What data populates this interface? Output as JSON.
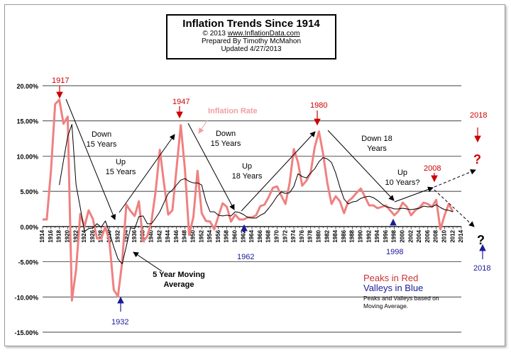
{
  "header": {
    "title": "Inflation  Trends Since 1914",
    "copyright": "© 2013",
    "site": "www.InflationData.com",
    "prepared": "Prepared  By Timothy  McMahon",
    "updated": "Updated   4/27/2013"
  },
  "colors": {
    "inflation": "#f08080",
    "average": "#000000",
    "peak_text": "#cc0000",
    "valley_text": "#1a1a99",
    "series_label": "#f0a0a0"
  },
  "chart_data": {
    "type": "line",
    "title": "Inflation  Trends Since 1914",
    "xlabel": "",
    "ylabel": "",
    "xlim": [
      1914,
      2014
    ],
    "ylim": [
      -15,
      20
    ],
    "grid": true,
    "y_ticks": [
      "20.00%",
      "15.00%",
      "10.00%",
      "5.00%",
      "0.00%",
      "-5.00%",
      "-10.00%",
      "-15.00%"
    ],
    "x_ticks": [
      "1914",
      "1916",
      "1918",
      "1920",
      "1922",
      "1924",
      "1926",
      "1928",
      "1930",
      "1932",
      "1934",
      "1936",
      "1938",
      "1940",
      "1942",
      "1944",
      "1946",
      "1948",
      "1950",
      "1952",
      "1954",
      "1956",
      "1958",
      "1960",
      "1962",
      "1964",
      "1966",
      "1968",
      "1970",
      "1972",
      "1974",
      "1976",
      "1978",
      "1980",
      "1982",
      "1984",
      "1986",
      "1988",
      "1990",
      "1992",
      "1994",
      "1996",
      "1998",
      "2000",
      "2002",
      "2004",
      "2006",
      "2008",
      "2010",
      "2012",
      "2014"
    ],
    "series": [
      {
        "name": "Inflation Rate",
        "x": [
          1914,
          1915,
          1916,
          1917,
          1918,
          1919,
          1920,
          1921,
          1922,
          1923,
          1924,
          1925,
          1926,
          1927,
          1928,
          1929,
          1930,
          1931,
          1932,
          1933,
          1934,
          1935,
          1936,
          1937,
          1938,
          1939,
          1940,
          1941,
          1942,
          1943,
          1944,
          1945,
          1946,
          1947,
          1948,
          1949,
          1950,
          1951,
          1952,
          1953,
          1954,
          1955,
          1956,
          1957,
          1958,
          1959,
          1960,
          1961,
          1962,
          1963,
          1964,
          1965,
          1966,
          1967,
          1968,
          1969,
          1970,
          1971,
          1972,
          1973,
          1974,
          1975,
          1976,
          1977,
          1978,
          1979,
          1980,
          1981,
          1982,
          1983,
          1984,
          1985,
          1986,
          1987,
          1988,
          1989,
          1990,
          1991,
          1992,
          1993,
          1994,
          1995,
          1996,
          1997,
          1998,
          1999,
          2000,
          2001,
          2002,
          2003,
          2004,
          2005,
          2006,
          2007,
          2008,
          2009,
          2010,
          2011,
          2012
        ],
        "values": [
          1.0,
          1.0,
          7.9,
          17.4,
          18.0,
          14.6,
          15.6,
          -10.5,
          -6.1,
          1.8,
          0.0,
          2.3,
          1.1,
          -1.7,
          -1.7,
          0.0,
          -2.3,
          -9.0,
          -9.9,
          -5.1,
          3.1,
          2.2,
          1.5,
          3.6,
          -2.1,
          -1.4,
          0.7,
          5.0,
          10.9,
          6.1,
          1.7,
          2.3,
          8.3,
          14.4,
          8.1,
          -1.2,
          1.3,
          7.9,
          1.9,
          0.8,
          0.7,
          -0.4,
          1.5,
          3.3,
          2.8,
          0.7,
          1.7,
          1.0,
          1.0,
          1.3,
          1.3,
          1.6,
          2.9,
          3.1,
          4.2,
          5.5,
          5.7,
          4.4,
          3.2,
          6.2,
          11.0,
          9.1,
          5.8,
          6.5,
          7.6,
          11.3,
          13.5,
          10.3,
          6.2,
          3.2,
          4.3,
          3.6,
          1.9,
          3.6,
          4.1,
          4.8,
          5.4,
          4.2,
          3.0,
          3.0,
          2.6,
          2.8,
          3.0,
          2.3,
          1.6,
          2.2,
          3.4,
          2.8,
          1.6,
          2.3,
          2.7,
          3.4,
          3.2,
          2.8,
          3.8,
          -0.4,
          1.6,
          3.2,
          2.1
        ]
      },
      {
        "name": "5 Year Moving Average",
        "x": [
          1918,
          1919,
          1920,
          1921,
          1922,
          1923,
          1924,
          1925,
          1926,
          1927,
          1928,
          1929,
          1930,
          1931,
          1932,
          1933,
          1934,
          1935,
          1936,
          1937,
          1938,
          1939,
          1940,
          1941,
          1942,
          1943,
          1944,
          1945,
          1946,
          1947,
          1948,
          1949,
          1950,
          1951,
          1952,
          1953,
          1954,
          1955,
          1956,
          1957,
          1958,
          1959,
          1960,
          1961,
          1962,
          1963,
          1964,
          1965,
          1966,
          1967,
          1968,
          1969,
          1970,
          1971,
          1972,
          1973,
          1974,
          1975,
          1976,
          1977,
          1978,
          1979,
          1980,
          1981,
          1982,
          1983,
          1984,
          1985,
          1986,
          1987,
          1988,
          1989,
          1990,
          1991,
          1992,
          1993,
          1994,
          1995,
          1996,
          1997,
          1998,
          1999,
          2000,
          2001,
          2002,
          2003,
          2004,
          2005,
          2006,
          2007,
          2008,
          2009,
          2010,
          2011,
          2012
        ],
        "values": [
          5.9,
          9.4,
          12.8,
          14.5,
          5.9,
          2.7,
          -0.7,
          -0.3,
          -0.2,
          0.4,
          -0.1,
          0.8,
          -0.9,
          -2.9,
          -4.6,
          -5.3,
          -2.8,
          -0.2,
          -0.3,
          1.4,
          1.5,
          0.4,
          0.4,
          1.2,
          2.1,
          3.4,
          4.7,
          5.2,
          5.9,
          6.6,
          6.8,
          6.4,
          6.2,
          6.2,
          5.9,
          3.6,
          2.1,
          2.1,
          1.6,
          1.5,
          1.6,
          1.5,
          2.1,
          2.0,
          1.7,
          1.3,
          1.2,
          1.2,
          1.6,
          1.9,
          2.6,
          3.4,
          4.3,
          4.9,
          4.7,
          4.8,
          5.7,
          7.5,
          7.1,
          6.9,
          7.6,
          8.2,
          9.2,
          9.8,
          9.6,
          9.1,
          7.6,
          5.6,
          3.9,
          3.2,
          3.5,
          3.6,
          4.0,
          4.2,
          4.3,
          4.1,
          3.7,
          3.2,
          2.8,
          2.7,
          2.5,
          2.5,
          2.6,
          2.5,
          2.4,
          2.5,
          2.6,
          2.9,
          2.8,
          2.8,
          3.1,
          2.7,
          2.4,
          2.3,
          2.1
        ]
      }
    ],
    "series_label": "Inflation Rate",
    "average_label": "5 Year Moving Average",
    "peaks": [
      {
        "year": "1917",
        "text": "1917"
      },
      {
        "year": "1947",
        "text": "1947"
      },
      {
        "year": "1980",
        "text": "1980"
      },
      {
        "year": "2008",
        "text": "2008"
      },
      {
        "year": "2018",
        "text": "2018"
      }
    ],
    "valleys": [
      {
        "year": "1932",
        "text": "1932"
      },
      {
        "year": "1962",
        "text": "1962"
      },
      {
        "year": "1998",
        "text": "1998"
      },
      {
        "year": "2018",
        "text": "2018"
      }
    ],
    "trend_labels": [
      {
        "line1": "Down",
        "line2": "15 Years"
      },
      {
        "line1": "Up",
        "line2": "15 Years"
      },
      {
        "line1": "Down",
        "line2": "15 Years"
      },
      {
        "line1": "Up",
        "line2": "18 Years"
      },
      {
        "line1": "Down 18",
        "line2": "Years"
      },
      {
        "line1": "Up",
        "line2": "10 Years?"
      }
    ],
    "question_mark": "?",
    "legend": {
      "peaks": "Peaks in Red",
      "valleys": "Valleys in Blue",
      "note1": "Peaks and Valleys based on",
      "note2": "Moving Average."
    }
  }
}
